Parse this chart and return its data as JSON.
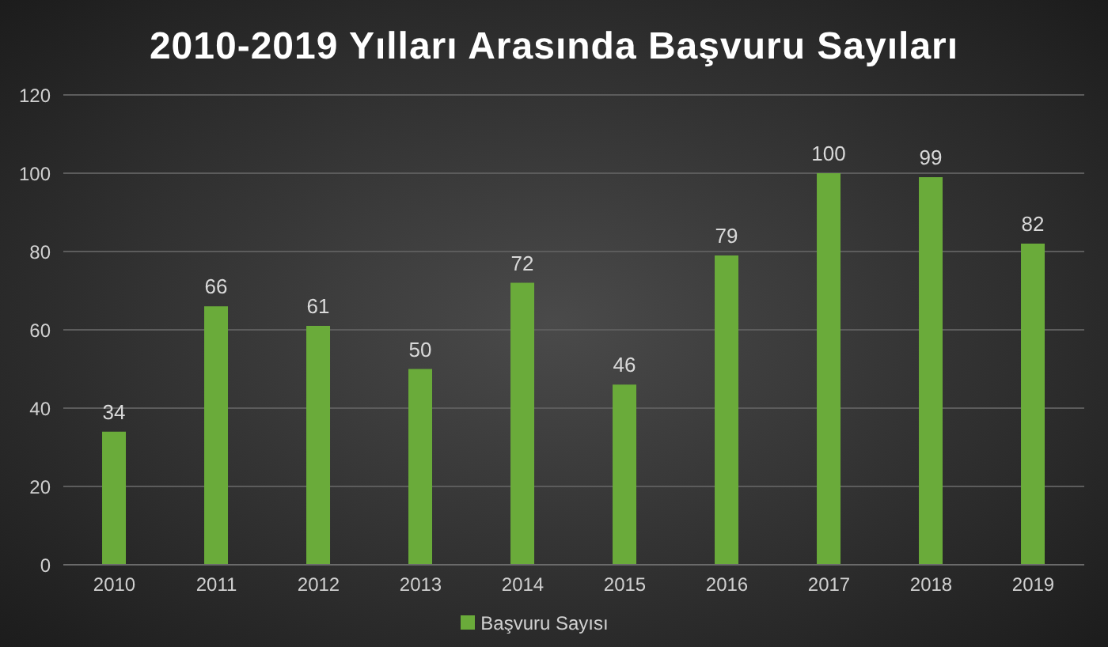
{
  "chart_data": {
    "type": "bar",
    "title": "2010-2019 Yılları Arasında Başvuru Sayıları",
    "categories": [
      "2010",
      "2011",
      "2012",
      "2013",
      "2014",
      "2015",
      "2016",
      "2017",
      "2018",
      "2019"
    ],
    "series": [
      {
        "name": "Başvuru Sayısı",
        "color": "#6aab3a",
        "values": [
          34,
          66,
          61,
          50,
          72,
          46,
          79,
          100,
          99,
          82
        ]
      }
    ],
    "ylim": [
      0,
      120
    ],
    "yticks": [
      0,
      20,
      40,
      60,
      80,
      100,
      120
    ],
    "grid": "y",
    "legend": "bottom",
    "data_labels": true
  }
}
